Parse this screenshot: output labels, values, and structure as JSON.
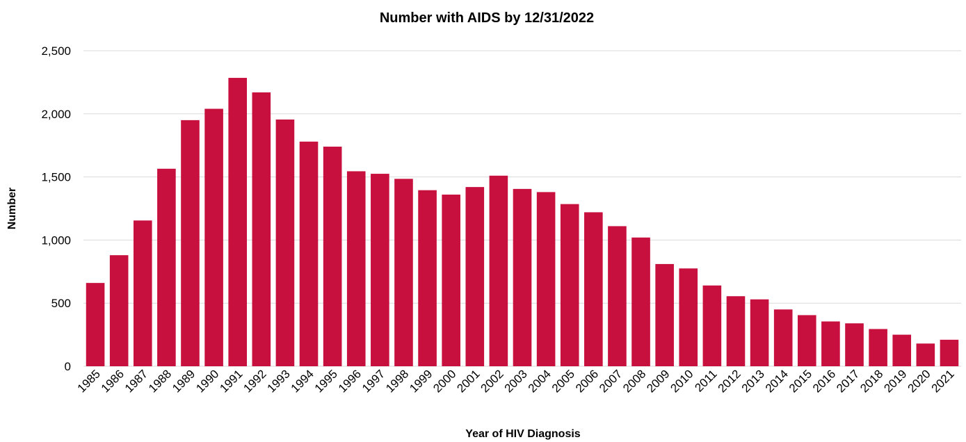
{
  "chart_data": {
    "type": "bar",
    "title": "Number with AIDS by 12/31/2022",
    "xlabel": "Year of HIV Diagnosis",
    "ylabel": "Number",
    "ylim": [
      0,
      2500
    ],
    "yticks": [
      0,
      500,
      1000,
      1500,
      2000,
      2500
    ],
    "ytick_labels": [
      "0",
      "500",
      "1,000",
      "1,500",
      "2,000",
      "2,500"
    ],
    "grid": true,
    "bar_color": "#c8103e",
    "categories": [
      "1985",
      "1986",
      "1987",
      "1988",
      "1989",
      "1990",
      "1991",
      "1992",
      "1993",
      "1994",
      "1995",
      "1996",
      "1997",
      "1998",
      "1999",
      "2000",
      "2001",
      "2002",
      "2003",
      "2004",
      "2005",
      "2006",
      "2007",
      "2008",
      "2009",
      "2010",
      "2011",
      "2012",
      "2013",
      "2014",
      "2015",
      "2016",
      "2017",
      "2018",
      "2019",
      "2020",
      "2021"
    ],
    "values": [
      660,
      880,
      1155,
      1565,
      1950,
      2040,
      2285,
      2170,
      1955,
      1780,
      1740,
      1545,
      1525,
      1485,
      1395,
      1360,
      1420,
      1510,
      1405,
      1380,
      1285,
      1220,
      1110,
      1020,
      810,
      775,
      640,
      555,
      530,
      450,
      405,
      355,
      340,
      295,
      250,
      180,
      210
    ]
  }
}
